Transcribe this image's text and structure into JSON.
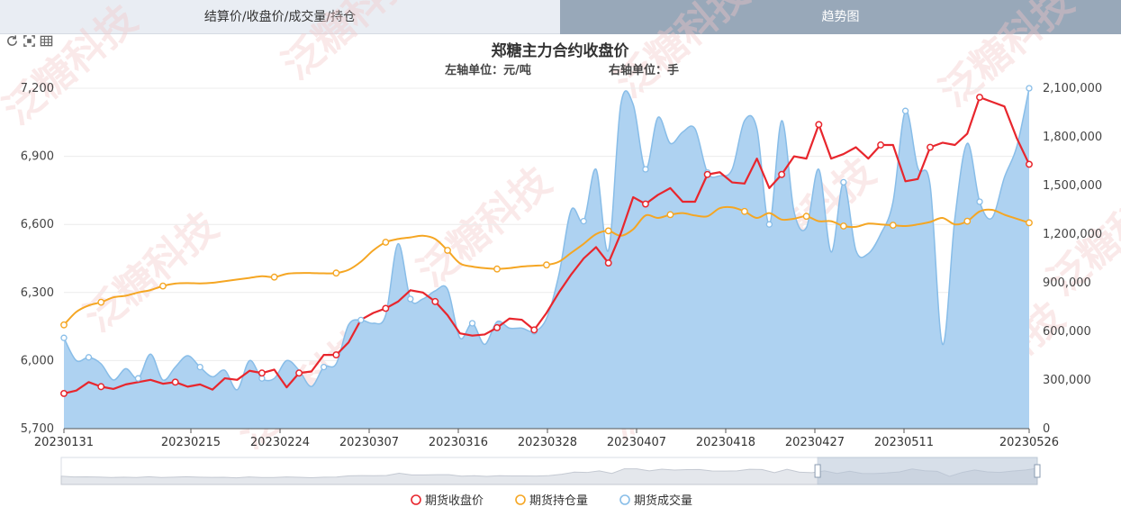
{
  "tabs": [
    {
      "label": "结算价/收盘价/成交量/持仓",
      "active": false
    },
    {
      "label": "趋势图",
      "active": true
    }
  ],
  "toolbar": {
    "icons": [
      "refresh-icon",
      "fullscreen-icon",
      "table-icon"
    ]
  },
  "watermark": "泛糖科技",
  "colors": {
    "close_price": "#e8262d",
    "open_interest": "#f5a623",
    "volume_line": "#88bde8",
    "volume_fill": "#aed2f1",
    "tab_active": "#98a8b9"
  },
  "chart_data": {
    "type": "line",
    "title": "郑糖主力合约收盘价",
    "left_unit": "左轴单位：元/吨",
    "right_unit": "右轴单位：手",
    "x_tick_labels": [
      "20230131",
      "20230215",
      "20230224",
      "20230307",
      "20230316",
      "20230328",
      "20230407",
      "20230418",
      "20230427",
      "20230511",
      "20230526"
    ],
    "left_axis": {
      "min": 5700,
      "max": 7200,
      "ticks": [
        5700,
        6000,
        6300,
        6600,
        6900,
        7200
      ],
      "tick_labels": [
        "5,700",
        "6,000",
        "6,300",
        "6,600",
        "6,900",
        "7,200"
      ]
    },
    "right_axis": {
      "min": 0,
      "max": 2100000,
      "ticks": [
        0,
        300000,
        600000,
        900000,
        1200000,
        1500000,
        1800000,
        2100000
      ],
      "tick_labels": [
        "0",
        "300,000",
        "600,000",
        "900,000",
        "1,200,000",
        "1,500,000",
        "1,800,000",
        "2,100,000"
      ]
    },
    "grid": true,
    "legend_position": "bottom",
    "series": [
      {
        "name": "期货收盘价",
        "axis": "left",
        "style": "line",
        "values": [
          5855,
          5868,
          5905,
          5885,
          5875,
          5895,
          5905,
          5915,
          5898,
          5905,
          5885,
          5895,
          5872,
          5922,
          5915,
          5955,
          5945,
          5960,
          5882,
          5945,
          5952,
          6025,
          6025,
          6080,
          6180,
          6210,
          6230,
          6260,
          6310,
          6300,
          6260,
          6200,
          6120,
          6110,
          6115,
          6145,
          6185,
          6180,
          6135,
          6210,
          6300,
          6380,
          6450,
          6500,
          6430,
          6560,
          6720,
          6690,
          6730,
          6760,
          6700,
          6700,
          6820,
          6830,
          6785,
          6780,
          6890,
          6760,
          6820,
          6900,
          6890,
          7040,
          6890,
          6910,
          6940,
          6890,
          6950,
          6950,
          6790,
          6800,
          6940,
          6960,
          6950,
          7000,
          7160,
          7140,
          7120,
          6980,
          6865
        ]
      },
      {
        "name": "期货持仓量",
        "axis": "right",
        "style": "line",
        "values": [
          640000,
          720000,
          760000,
          780000,
          810000,
          820000,
          840000,
          855000,
          880000,
          895000,
          898000,
          896000,
          900000,
          910000,
          920000,
          930000,
          940000,
          935000,
          955000,
          960000,
          960000,
          958000,
          960000,
          980000,
          1030000,
          1100000,
          1150000,
          1170000,
          1180000,
          1190000,
          1170000,
          1100000,
          1020000,
          1000000,
          990000,
          985000,
          990000,
          1000000,
          1005000,
          1010000,
          1030000,
          1085000,
          1140000,
          1200000,
          1220000,
          1190000,
          1230000,
          1315000,
          1300000,
          1320000,
          1330000,
          1315000,
          1310000,
          1360000,
          1365000,
          1340000,
          1300000,
          1330000,
          1290000,
          1295000,
          1310000,
          1280000,
          1280000,
          1250000,
          1245000,
          1265000,
          1260000,
          1255000,
          1250000,
          1260000,
          1275000,
          1300000,
          1260000,
          1280000,
          1340000,
          1350000,
          1320000,
          1295000,
          1270000
        ]
      },
      {
        "name": "期货成交量",
        "axis": "right",
        "style": "area",
        "values": [
          560000,
          420000,
          440000,
          400000,
          300000,
          370000,
          310000,
          460000,
          300000,
          380000,
          450000,
          380000,
          320000,
          360000,
          240000,
          420000,
          310000,
          310000,
          420000,
          360000,
          260000,
          380000,
          400000,
          640000,
          670000,
          650000,
          700000,
          1140000,
          800000,
          800000,
          850000,
          860000,
          560000,
          650000,
          520000,
          660000,
          620000,
          620000,
          600000,
          680000,
          950000,
          1350000,
          1280000,
          1600000,
          1100000,
          2000000,
          2000000,
          1600000,
          1920000,
          1760000,
          1830000,
          1850000,
          1580000,
          1560000,
          1600000,
          1900000,
          1850000,
          1260000,
          1900000,
          1340000,
          1240000,
          1600000,
          1090000,
          1520000,
          1100000,
          1080000,
          1200000,
          1400000,
          1960000,
          1610000,
          1500000,
          520000,
          1300000,
          1760000,
          1400000,
          1300000,
          1550000,
          1740000,
          2100000
        ]
      }
    ]
  },
  "chart_marker_indices": {
    "close": [
      0,
      3,
      9,
      16,
      19,
      22,
      26,
      30,
      35,
      38,
      44,
      47,
      52,
      58,
      61,
      66,
      70,
      74,
      78
    ],
    "oi": [
      0,
      3,
      8,
      17,
      22,
      26,
      31,
      35,
      39,
      44,
      49,
      55,
      60,
      63,
      67,
      73,
      78
    ],
    "vol": [
      0,
      2,
      6,
      11,
      16,
      21,
      24,
      28,
      33,
      38,
      42,
      47,
      52,
      57,
      63,
      68,
      74,
      78
    ]
  },
  "zoom": {
    "start": 0.775,
    "end": 1.0
  }
}
